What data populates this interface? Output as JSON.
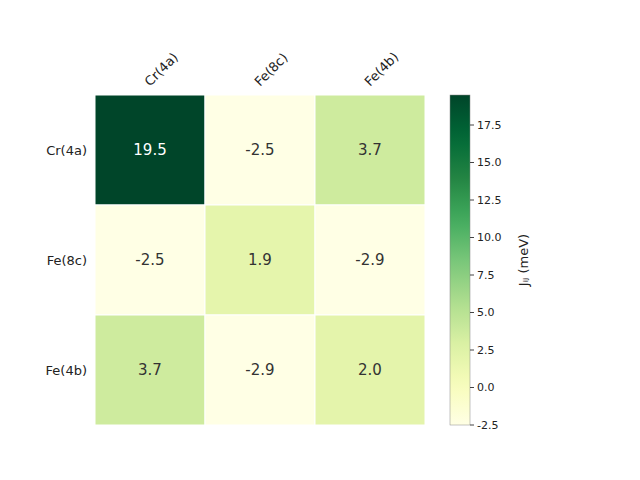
{
  "chart_data": {
    "type": "heatmap",
    "x_categories": [
      "Cr(4a)",
      "Fe(8c)",
      "Fe(4b)"
    ],
    "y_categories": [
      "Cr(4a)",
      "Fe(8c)",
      "Fe(4b)"
    ],
    "values": [
      [
        19.5,
        -2.5,
        3.7
      ],
      [
        -2.5,
        1.9,
        -2.9
      ],
      [
        3.7,
        -2.9,
        2.0
      ]
    ],
    "value_labels": [
      [
        "19.5",
        "-2.5",
        "3.7"
      ],
      [
        "-2.5",
        "1.9",
        "-2.9"
      ],
      [
        "3.7",
        "-2.9",
        "2.0"
      ]
    ],
    "data_labels": true,
    "colorbar_label": "Jᵢⱼ (meV)",
    "colorbar_range": [
      -2.5,
      19.5
    ],
    "colorbar_ticks": [
      -2.5,
      {
        "value": 0.0,
        "label": "0.0"
      },
      2.5,
      {
        "value": 5.0,
        "label": "5.0"
      },
      7.5,
      {
        "value": 10.0,
        "label": "10.0"
      },
      12.5,
      {
        "value": 15.0,
        "label": "15.0"
      },
      17.5
    ]
  }
}
